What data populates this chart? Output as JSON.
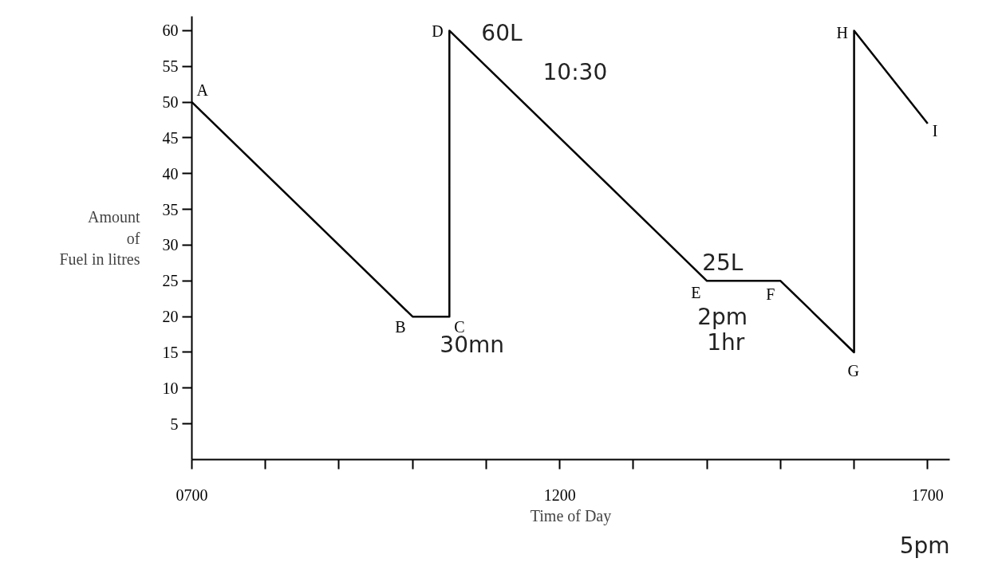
{
  "chart_data": {
    "type": "line",
    "xlabel": "Time of Day",
    "ylabel": "Amount\nof\nFuel in litres",
    "x": [
      700,
      1000,
      1050,
      1050,
      1400,
      1500,
      1600,
      1600,
      1700
    ],
    "series": [
      {
        "color": "#000000",
        "values": [
          50,
          20,
          20,
          60,
          25,
          25,
          15,
          60,
          47
        ]
      }
    ],
    "xlim": [
      700,
      1730
    ],
    "ylim": [
      0,
      62
    ],
    "xticks": [
      {
        "value": 700,
        "label": "0700"
      },
      {
        "value": 800,
        "label": null
      },
      {
        "value": 900,
        "label": null
      },
      {
        "value": 1000,
        "label": null
      },
      {
        "value": 1100,
        "label": null
      },
      1200,
      {
        "value": 1300,
        "label": null
      },
      {
        "value": 1400,
        "label": null
      },
      {
        "value": 1500,
        "label": null
      },
      {
        "value": 1600,
        "label": null
      },
      1700
    ],
    "yticks": [
      5,
      10,
      15,
      20,
      25,
      30,
      35,
      40,
      45,
      50,
      55,
      60
    ],
    "grid": false,
    "marker": "none",
    "line_style": "solid",
    "annotations": [
      {
        "text": "A",
        "x": 700,
        "y": 50
      },
      {
        "text": "B",
        "x": 1000,
        "y": 20
      },
      {
        "text": "C",
        "x": 1050,
        "y": 20
      },
      {
        "text": "D",
        "x": 1050,
        "y": 60
      },
      {
        "text": "E",
        "x": 1400,
        "y": 25
      },
      {
        "text": "F",
        "x": 1500,
        "y": 25
      },
      {
        "text": "G",
        "x": 1600,
        "y": 15
      },
      {
        "text": "H",
        "x": 1600,
        "y": 60
      },
      {
        "text": "I",
        "x": 1700,
        "y": 47
      },
      {
        "text": "60L",
        "x": 1050,
        "y": 60
      },
      "10:30",
      {
        "text": "30mn",
        "x": 1050,
        "y": 20
      },
      {
        "text": "25L",
        "x": 1400,
        "y": 25
      },
      {
        "text": "2pm",
        "x": 1400,
        "y": 25
      },
      {
        "text": "1hr",
        "x": 1400,
        "y": 25
      },
      "5pm"
    ]
  }
}
